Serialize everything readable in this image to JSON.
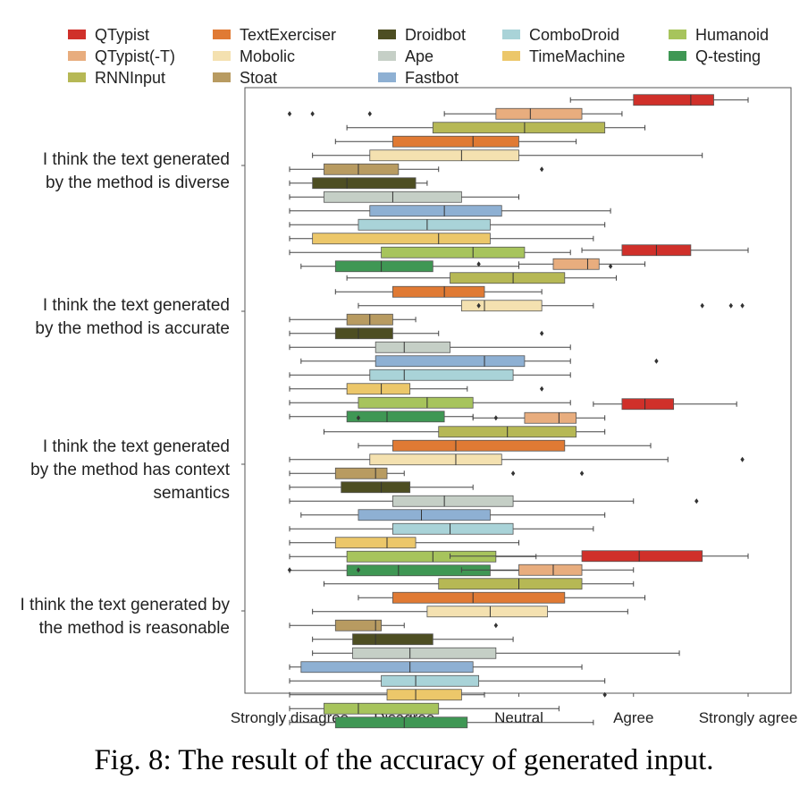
{
  "caption": "Fig. 8: The result of the accuracy of generated input.",
  "chart_data": {
    "type": "boxplot",
    "orientation": "horizontal",
    "x_ticks": [
      "Strongly disagree",
      "Disagree",
      "Neutral",
      "Agree",
      "Strongly agree"
    ],
    "xlim": [
      1,
      5
    ],
    "legend_position": "top",
    "legend": [
      {
        "name": "QTypist",
        "color": "#d0302a"
      },
      {
        "name": "TextExerciser",
        "color": "#e07a34"
      },
      {
        "name": "Droidbot",
        "color": "#4d4e22"
      },
      {
        "name": "ComboDroid",
        "color": "#a9d3d8"
      },
      {
        "name": "Humanoid",
        "color": "#a7c45c"
      },
      {
        "name": "QTypist(-T)",
        "color": "#e8ad7e"
      },
      {
        "name": "Mobolic",
        "color": "#f4e1b0"
      },
      {
        "name": "Ape",
        "color": "#c5cfc6"
      },
      {
        "name": "TimeMachine",
        "color": "#ecc76a"
      },
      {
        "name": "Q-testing",
        "color": "#3f9754"
      },
      {
        "name": "RNNInput",
        "color": "#b6b855"
      },
      {
        "name": "Stoat",
        "color": "#b89b61"
      },
      {
        "name": "Fastbot",
        "color": "#8eb0d3"
      }
    ],
    "series_order": [
      "QTypist",
      "QTypist(-T)",
      "RNNInput",
      "TextExerciser",
      "Mobolic",
      "Stoat",
      "Droidbot",
      "Ape",
      "Fastbot",
      "ComboDroid",
      "TimeMachine",
      "Humanoid",
      "Q-testing"
    ],
    "groups": [
      {
        "label_lines": [
          "I think the text generated",
          "by the method is diverse"
        ],
        "boxes": [
          {
            "series": "QTypist",
            "min": 3.45,
            "q1": 4.0,
            "median": 4.5,
            "q3": 4.7,
            "max": 5.0,
            "outliers": []
          },
          {
            "series": "QTypist(-T)",
            "min": 2.35,
            "q1": 2.8,
            "median": 3.1,
            "q3": 3.55,
            "max": 3.9,
            "outliers": [
              1.0,
              1.2,
              1.7
            ]
          },
          {
            "series": "RNNInput",
            "min": 1.5,
            "q1": 2.25,
            "median": 3.05,
            "q3": 3.75,
            "max": 4.1,
            "outliers": []
          },
          {
            "series": "TextExerciser",
            "min": 1.4,
            "q1": 1.9,
            "median": 2.6,
            "q3": 3.0,
            "max": 3.5,
            "outliers": []
          },
          {
            "series": "Mobolic",
            "min": 1.2,
            "q1": 1.7,
            "median": 2.5,
            "q3": 3.0,
            "max": 4.6,
            "outliers": []
          },
          {
            "series": "Stoat",
            "min": 1.0,
            "q1": 1.3,
            "median": 1.6,
            "q3": 1.95,
            "max": 2.3,
            "outliers": [
              3.2
            ]
          },
          {
            "series": "Droidbot",
            "min": 1.0,
            "q1": 1.2,
            "median": 1.5,
            "q3": 2.1,
            "max": 2.2,
            "outliers": []
          },
          {
            "series": "Ape",
            "min": 1.0,
            "q1": 1.3,
            "median": 1.9,
            "q3": 2.5,
            "max": 3.0,
            "outliers": []
          },
          {
            "series": "Fastbot",
            "min": 1.0,
            "q1": 1.7,
            "median": 2.35,
            "q3": 2.85,
            "max": 3.8,
            "outliers": []
          },
          {
            "series": "ComboDroid",
            "min": 1.0,
            "q1": 1.6,
            "median": 2.2,
            "q3": 2.75,
            "max": 3.75,
            "outliers": []
          },
          {
            "series": "TimeMachine",
            "min": 1.0,
            "q1": 1.2,
            "median": 2.3,
            "q3": 2.75,
            "max": 3.65,
            "outliers": []
          },
          {
            "series": "Humanoid",
            "min": 1.0,
            "q1": 1.8,
            "median": 2.6,
            "q3": 3.05,
            "max": 3.45,
            "outliers": []
          },
          {
            "series": "Q-testing",
            "min": 1.1,
            "q1": 1.4,
            "median": 1.8,
            "q3": 2.25,
            "max": 3.0,
            "outliers": [
              3.8
            ]
          }
        ]
      },
      {
        "label_lines": [
          "I think the text generated",
          "by the method is accurate"
        ],
        "boxes": [
          {
            "series": "QTypist",
            "min": 3.55,
            "q1": 3.9,
            "median": 4.2,
            "q3": 4.5,
            "max": 5.0,
            "outliers": []
          },
          {
            "series": "QTypist(-T)",
            "min": 3.0,
            "q1": 3.3,
            "median": 3.6,
            "q3": 3.7,
            "max": 4.1,
            "outliers": [
              2.65
            ]
          },
          {
            "series": "RNNInput",
            "min": 1.5,
            "q1": 2.4,
            "median": 2.95,
            "q3": 3.4,
            "max": 3.85,
            "outliers": []
          },
          {
            "series": "TextExerciser",
            "min": 1.4,
            "q1": 1.9,
            "median": 2.35,
            "q3": 2.7,
            "max": 3.2,
            "outliers": []
          },
          {
            "series": "Mobolic",
            "min": 1.6,
            "q1": 2.5,
            "median": 2.7,
            "q3": 3.2,
            "max": 3.65,
            "outliers": [
              2.65,
              4.6,
              4.85,
              4.95
            ]
          },
          {
            "series": "Stoat",
            "min": 1.0,
            "q1": 1.5,
            "median": 1.7,
            "q3": 1.9,
            "max": 2.1,
            "outliers": []
          },
          {
            "series": "Droidbot",
            "min": 1.0,
            "q1": 1.4,
            "median": 1.6,
            "q3": 1.9,
            "max": 2.3,
            "outliers": [
              3.2
            ]
          },
          {
            "series": "Ape",
            "min": 1.0,
            "q1": 1.75,
            "median": 2.0,
            "q3": 2.4,
            "max": 3.45,
            "outliers": []
          },
          {
            "series": "Fastbot",
            "min": 1.1,
            "q1": 1.75,
            "median": 2.7,
            "q3": 3.05,
            "max": 3.45,
            "outliers": [
              4.2
            ]
          },
          {
            "series": "ComboDroid",
            "min": 1.0,
            "q1": 1.7,
            "median": 2.0,
            "q3": 2.95,
            "max": 3.45,
            "outliers": []
          },
          {
            "series": "TimeMachine",
            "min": 1.0,
            "q1": 1.5,
            "median": 1.8,
            "q3": 2.05,
            "max": 2.55,
            "outliers": [
              3.2
            ]
          },
          {
            "series": "Humanoid",
            "min": 1.0,
            "q1": 1.6,
            "median": 2.2,
            "q3": 2.6,
            "max": 3.45,
            "outliers": []
          },
          {
            "series": "Q-testing",
            "min": 1.0,
            "q1": 1.5,
            "median": 1.85,
            "q3": 2.35,
            "max": 2.6,
            "outliers": []
          }
        ]
      },
      {
        "label_lines": [
          "I think the text generated",
          "by the method has context",
          "semantics"
        ],
        "boxes": [
          {
            "series": "QTypist",
            "min": 3.65,
            "q1": 3.9,
            "median": 4.1,
            "q3": 4.35,
            "max": 4.9,
            "outliers": []
          },
          {
            "series": "QTypist(-T)",
            "min": 2.6,
            "q1": 3.05,
            "median": 3.35,
            "q3": 3.5,
            "max": 3.75,
            "outliers": [
              1.6,
              2.8
            ]
          },
          {
            "series": "RNNInput",
            "min": 1.3,
            "q1": 2.3,
            "median": 2.9,
            "q3": 3.5,
            "max": 3.75,
            "outliers": []
          },
          {
            "series": "TextExerciser",
            "min": 1.6,
            "q1": 1.9,
            "median": 2.45,
            "q3": 3.4,
            "max": 4.15,
            "outliers": []
          },
          {
            "series": "Mobolic",
            "min": 1.0,
            "q1": 1.7,
            "median": 2.45,
            "q3": 2.85,
            "max": 4.3,
            "outliers": [
              4.95
            ]
          },
          {
            "series": "Stoat",
            "min": 1.0,
            "q1": 1.4,
            "median": 1.75,
            "q3": 1.85,
            "max": 2.0,
            "outliers": [
              2.95,
              3.55
            ]
          },
          {
            "series": "Droidbot",
            "min": 1.0,
            "q1": 1.45,
            "median": 1.8,
            "q3": 2.05,
            "max": 2.6,
            "outliers": []
          },
          {
            "series": "Ape",
            "min": 1.0,
            "q1": 1.9,
            "median": 2.35,
            "q3": 2.95,
            "max": 4.0,
            "outliers": [
              4.55
            ]
          },
          {
            "series": "Fastbot",
            "min": 1.1,
            "q1": 1.6,
            "median": 2.15,
            "q3": 2.75,
            "max": 3.75,
            "outliers": []
          },
          {
            "series": "ComboDroid",
            "min": 1.0,
            "q1": 1.9,
            "median": 2.4,
            "q3": 2.95,
            "max": 3.65,
            "outliers": []
          },
          {
            "series": "TimeMachine",
            "min": 1.0,
            "q1": 1.4,
            "median": 1.85,
            "q3": 2.1,
            "max": 3.0,
            "outliers": []
          },
          {
            "series": "Humanoid",
            "min": 1.0,
            "q1": 1.5,
            "median": 2.25,
            "q3": 2.8,
            "max": 3.15,
            "outliers": []
          },
          {
            "series": "Q-testing",
            "min": 1.0,
            "q1": 1.5,
            "median": 1.95,
            "q3": 2.75,
            "max": 3.45,
            "outliers": []
          }
        ]
      },
      {
        "label_lines": [
          "I think the text generated by",
          "the method is reasonable"
        ],
        "boxes": [
          {
            "series": "QTypist",
            "min": 2.4,
            "q1": 3.55,
            "median": 4.05,
            "q3": 4.6,
            "max": 5.0,
            "outliers": []
          },
          {
            "series": "QTypist(-T)",
            "min": 2.5,
            "q1": 3.0,
            "median": 3.3,
            "q3": 3.55,
            "max": 4.0,
            "outliers": [
              1.0,
              1.6
            ]
          },
          {
            "series": "RNNInput",
            "min": 1.3,
            "q1": 2.3,
            "median": 3.0,
            "q3": 3.55,
            "max": 4.0,
            "outliers": []
          },
          {
            "series": "TextExerciser",
            "min": 1.6,
            "q1": 1.9,
            "median": 2.6,
            "q3": 3.4,
            "max": 4.1,
            "outliers": []
          },
          {
            "series": "Mobolic",
            "min": 1.2,
            "q1": 2.2,
            "median": 2.75,
            "q3": 3.25,
            "max": 3.95,
            "outliers": []
          },
          {
            "series": "Stoat",
            "min": 1.0,
            "q1": 1.4,
            "median": 1.75,
            "q3": 1.8,
            "max": 2.0,
            "outliers": [
              2.8
            ]
          },
          {
            "series": "Droidbot",
            "min": 1.2,
            "q1": 1.55,
            "median": 1.75,
            "q3": 2.25,
            "max": 2.95,
            "outliers": []
          },
          {
            "series": "Ape",
            "min": 1.2,
            "q1": 1.55,
            "median": 2.05,
            "q3": 2.8,
            "max": 4.4,
            "outliers": []
          },
          {
            "series": "Fastbot",
            "min": 1.0,
            "q1": 1.1,
            "median": 2.05,
            "q3": 2.6,
            "max": 3.55,
            "outliers": []
          },
          {
            "series": "ComboDroid",
            "min": 1.0,
            "q1": 1.8,
            "median": 2.1,
            "q3": 2.65,
            "max": 3.75,
            "outliers": []
          },
          {
            "series": "TimeMachine",
            "min": 1.0,
            "q1": 1.85,
            "median": 2.1,
            "q3": 2.5,
            "max": 2.7,
            "outliers": [
              3.75
            ]
          },
          {
            "series": "Humanoid",
            "min": 1.0,
            "q1": 1.3,
            "median": 1.6,
            "q3": 2.3,
            "max": 3.35,
            "outliers": []
          },
          {
            "series": "Q-testing",
            "min": 1.0,
            "q1": 1.4,
            "median": 2.0,
            "q3": 2.55,
            "max": 3.65,
            "outliers": []
          }
        ]
      }
    ]
  }
}
